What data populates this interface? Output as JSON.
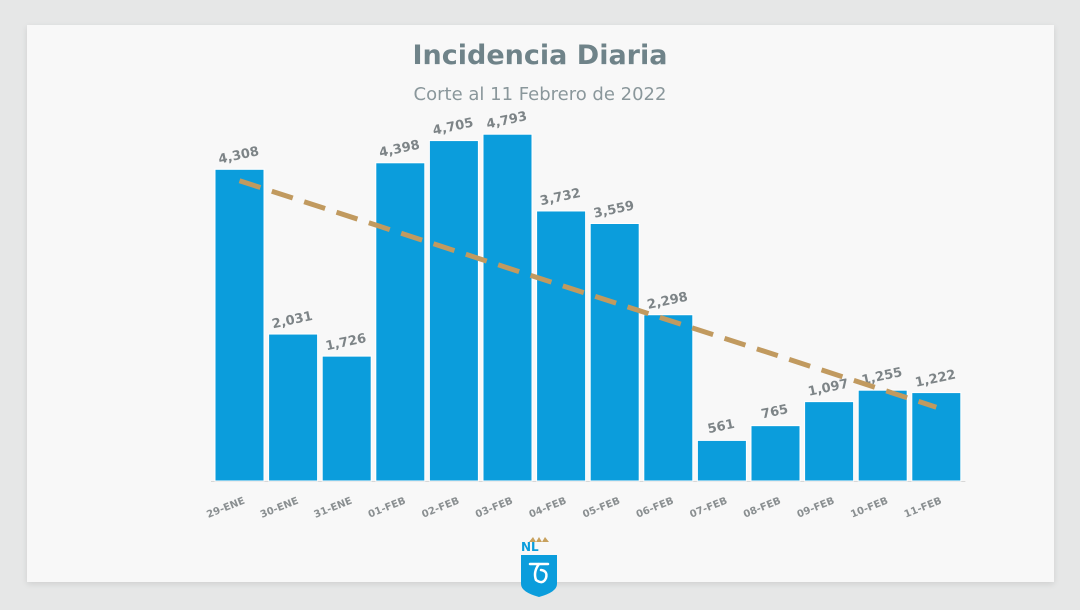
{
  "logo": {
    "text": "NL",
    "icon": "state-shield-icon"
  },
  "colors": {
    "bar": "#0b9ddc",
    "trend": "#c19a5f",
    "title": "#6f8389"
  },
  "chart_data": {
    "type": "bar",
    "title": "Incidencia Diaria",
    "subtitle": "Corte al 11 Febrero de 2022",
    "xlabel": "",
    "ylabel": "",
    "ylim": [
      0,
      5100
    ],
    "grid": false,
    "categories": [
      "29-ENE",
      "30-ENE",
      "31-ENE",
      "01-FEB",
      "02-FEB",
      "03-FEB",
      "04-FEB",
      "05-FEB",
      "06-FEB",
      "07-FEB",
      "08-FEB",
      "09-FEB",
      "10-FEB",
      "11-FEB"
    ],
    "values": [
      4308,
      2031,
      1726,
      4398,
      4705,
      4793,
      3732,
      3559,
      2298,
      561,
      765,
      1097,
      1255,
      1222
    ],
    "value_labels": [
      "4,308",
      "2,031",
      "1,726",
      "4,398",
      "4,705",
      "4,793",
      "3,732",
      "3,559",
      "2,298",
      "561",
      "765",
      "1,097",
      "1,255",
      "1,222"
    ],
    "trendline": {
      "style": "dashed",
      "start": 4150,
      "end": 1020
    }
  }
}
